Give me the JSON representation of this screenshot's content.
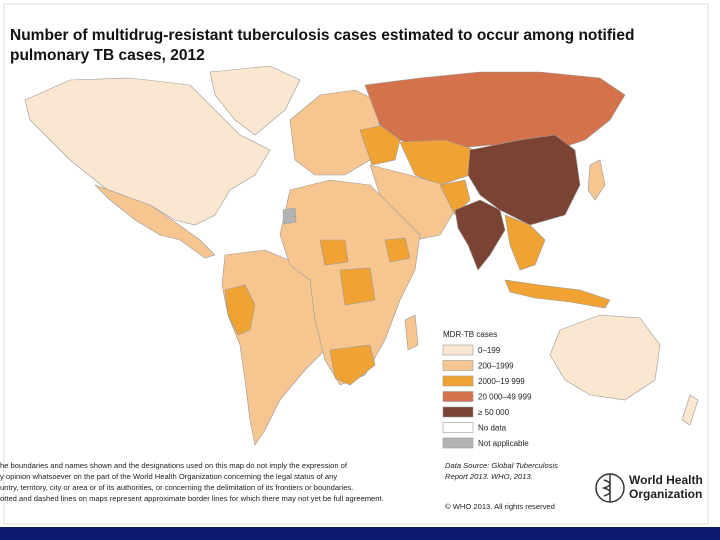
{
  "title": [
    "Number of multidrug-resistant tuberculosis cases estimated to occur among notified",
    "pulmonary TB cases, 2012"
  ],
  "legend": {
    "title": "MDR-TB cases",
    "items": [
      {
        "label": "0–199",
        "color": "#fbe6cf"
      },
      {
        "label": "200–1999",
        "color": "#f6c590"
      },
      {
        "label": "2000–19 999",
        "color": "#f0a332"
      },
      {
        "label": "20 000–49 999",
        "color": "#d4724c"
      },
      {
        "label": "≥ 50 000",
        "color": "#7b4333"
      },
      {
        "label": "No data",
        "color": "#ffffff"
      },
      {
        "label": "Not applicable",
        "color": "#b3b3b3"
      }
    ]
  },
  "disclaimer": [
    "he boundaries and names shown and the designations used on this map do not imply the expression of",
    "y opinion whatsoever on the part of the World Health Organization concerning the legal status of any",
    "untry, territory, city or area or of its authorities, or concerning the delimitation of its frontiers or boundaries.",
    "otted and dashed lines on maps represent approximate border lines for which there may not yet be full agreement."
  ],
  "source": [
    "Data Source: Global Tuberculosis",
    "Report 2013. WHO, 2013."
  ],
  "copyright": "© WHO 2013. All rights reserved",
  "logo": [
    "World Health",
    "Organization"
  ]
}
